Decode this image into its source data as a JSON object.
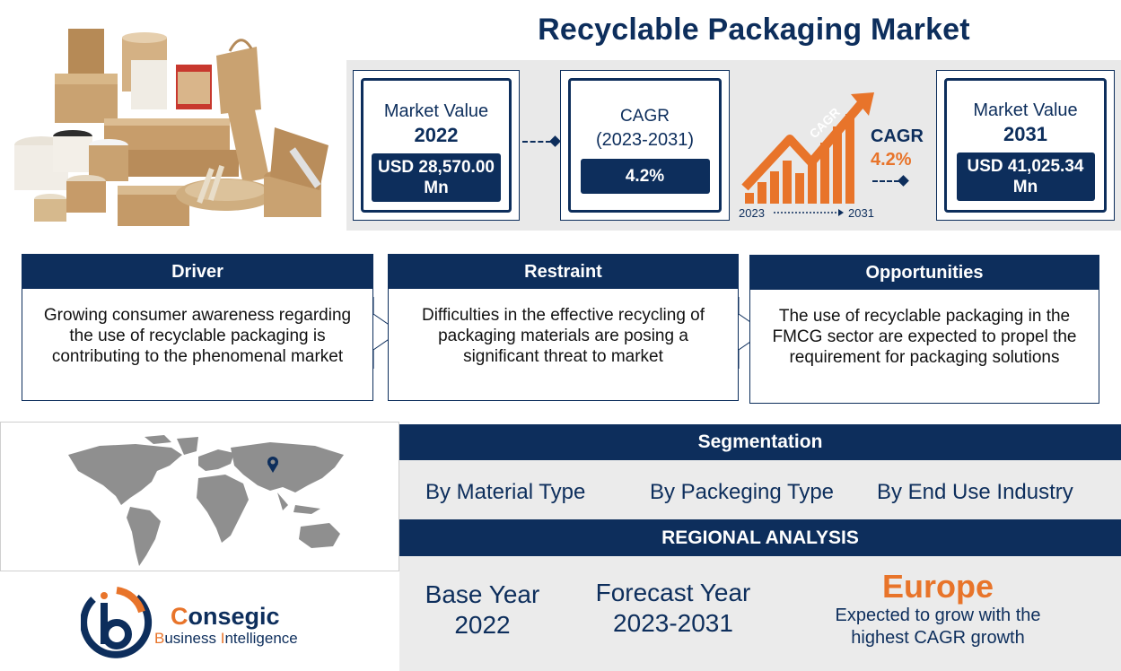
{
  "title": "Recyclable Packaging Market",
  "stats": {
    "value_2022": {
      "label": "Market Value",
      "year": "2022",
      "value": "USD 28,570.00 Mn"
    },
    "cagr": {
      "label": "CAGR",
      "period": "(2023-2031)",
      "value": "4.2%"
    },
    "growth_graphic": {
      "arrow_text": "CAGR",
      "start_year": "2023",
      "end_year": "2031",
      "label": "CAGR",
      "value": "4.2%"
    },
    "value_2031": {
      "label": "Market Value",
      "year": "2031",
      "value": "USD 41,025.34 Mn"
    }
  },
  "driver": {
    "heading": "Driver",
    "text": "Growing consumer awareness regarding the use of recyclable packaging is contributing to the phenomenal market"
  },
  "restraint": {
    "heading": "Restraint",
    "text": "Difficulties in the effective recycling of packaging materials are posing a significant threat to market"
  },
  "opportunities": {
    "heading": "Opportunities",
    "text": "The use of recyclable packaging in the FMCG sector are expected to propel the requirement for packaging solutions"
  },
  "segmentation": {
    "heading": "Segmentation",
    "items": [
      "By Material Type",
      "By Packeging Type",
      "By End Use Industry"
    ]
  },
  "regional": {
    "heading": "REGIONAL ANALYSIS",
    "base_year_label": "Base Year",
    "base_year": "2022",
    "forecast_label": "Forecast Year",
    "forecast_period": "2023-2031",
    "region": "Europe",
    "region_desc": "Expected to grow with the highest CAGR growth"
  },
  "logo": {
    "name_first": "C",
    "name_rest": "onsegic",
    "sub_first": "B",
    "sub_mid": "usiness ",
    "sub_first2": "I",
    "sub_rest": "ntelligence"
  },
  "colors": {
    "navy": "#0d2e5c",
    "orange": "#e8742a",
    "panel_gray": "#e9e9e9"
  }
}
